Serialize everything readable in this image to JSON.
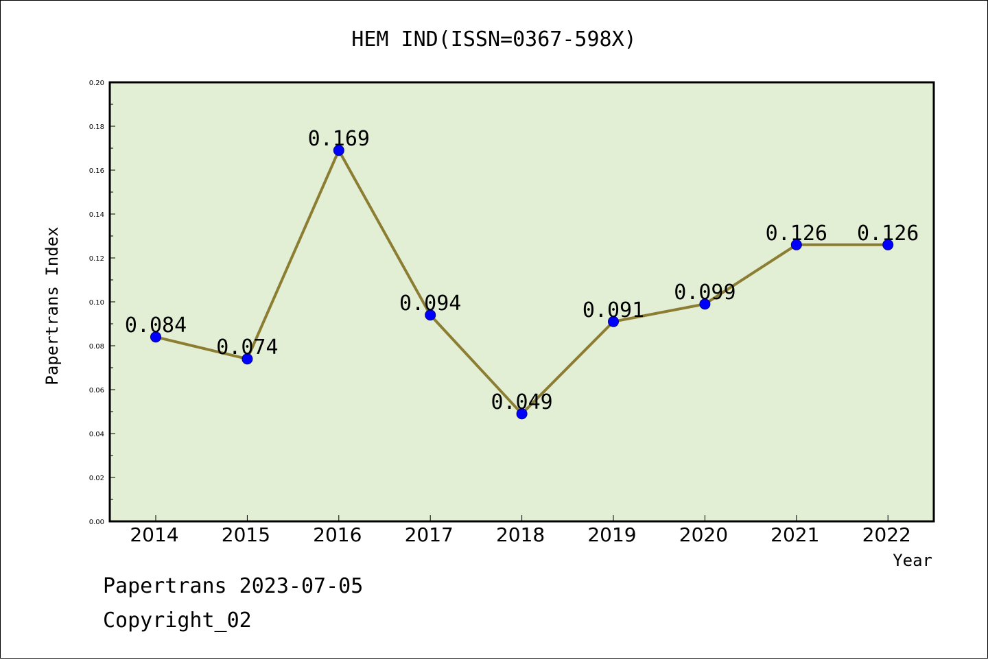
{
  "chart_data": {
    "type": "line",
    "title": "HEM IND(ISSN=0367-598X)",
    "xlabel": "Year",
    "ylabel": "Papertrans Index",
    "x": [
      "2014",
      "2015",
      "2016",
      "2017",
      "2018",
      "2019",
      "2020",
      "2021",
      "2022"
    ],
    "series": [
      {
        "values": [
          0.084,
          0.074,
          0.169,
          0.094,
          0.049,
          0.091,
          0.099,
          0.126,
          0.126
        ],
        "labels": [
          "0.084",
          "0.074",
          "0.169",
          "0.094",
          "0.049",
          "0.091",
          "0.099",
          "0.126",
          "0.126"
        ]
      }
    ],
    "ylim": [
      0,
      0.2
    ],
    "yticks": [
      "0.00",
      "0.02",
      "0.04",
      "0.06",
      "0.08",
      "0.10",
      "0.12",
      "0.14",
      "0.16",
      "0.18",
      "0.20"
    ],
    "grid": false,
    "legend": "none",
    "colors": {
      "plot_background": "#e2efd4",
      "line": "#8b7d32",
      "marker": "#0000ff"
    }
  },
  "footer": {
    "line1": "Papertrans 2023-07-05",
    "line2": "Copyright_02"
  }
}
